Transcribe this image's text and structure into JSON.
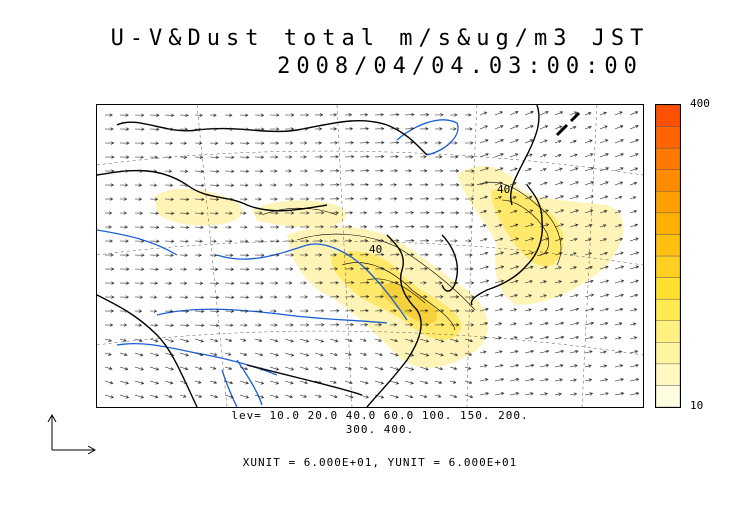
{
  "title": {
    "line1": "U-V&Dust total m/s&ug/m3 JST",
    "line2": "2008/04/04.03:00:00"
  },
  "colorbar": {
    "max_label": "400",
    "min_label": "10",
    "colors": [
      "#fffde0",
      "#fff8c0",
      "#fff5a0",
      "#fff080",
      "#ffeb50",
      "#ffe030",
      "#ffd020",
      "#ffc010",
      "#ffb000",
      "#ffa000",
      "#ff8c00",
      "#ff7800",
      "#ff6400",
      "#ff5000"
    ]
  },
  "levels_text": {
    "line1": "lev= 10.0 20.0 40.0 60.0 100. 150. 200.",
    "line2": "300. 400."
  },
  "contour_labels": [
    "40",
    "40"
  ],
  "units_text": "XUNIT = 6.000E+01, YUNIT = 6.000E+01",
  "colors": {
    "dust_light": "#fff4b8",
    "dust_mid": "#ffe86a",
    "dust_strong": "#f5d23c",
    "rivers": "#1a5fd6",
    "coast": "#000000"
  },
  "icons": {
    "reference_vector": "axis-arrows-icon"
  }
}
